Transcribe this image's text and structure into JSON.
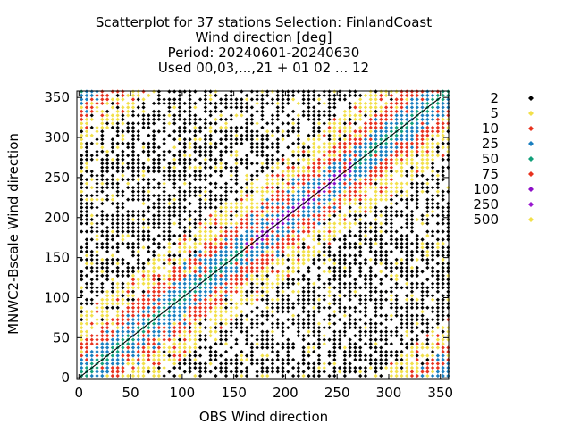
{
  "chart_data": {
    "type": "heatmap",
    "title_lines": [
      "Scatterplot for   37 stations Selection: FinlandCoast",
      "Wind direction [deg]",
      "Period: 20240601-20240630",
      "Used 00,03,...,21 + 01 02 ... 12"
    ],
    "xlabel": "OBS Wind direction",
    "ylabel": "MNWC2-Bscale Wind direction",
    "xlim": [
      -2,
      358
    ],
    "ylim": [
      -2,
      358
    ],
    "xticks": [
      0,
      50,
      100,
      150,
      200,
      250,
      300,
      350
    ],
    "yticks": [
      0,
      50,
      100,
      150,
      200,
      250,
      300,
      350
    ],
    "diagonal": true,
    "bin_size_deg": 5,
    "legend": {
      "placement": "right",
      "entries": [
        {
          "label": "2",
          "color": "#000000"
        },
        {
          "label": "5",
          "color": "#f2e04a"
        },
        {
          "label": "10",
          "color": "#e8321e"
        },
        {
          "label": "25",
          "color": "#1a7fbf"
        },
        {
          "label": "50",
          "color": "#12a07a"
        },
        {
          "label": "75",
          "color": "#e8321e"
        },
        {
          "label": "100",
          "color": "#8e10c8"
        },
        {
          "label": "250",
          "color": "#9a18d0"
        },
        {
          "label": "500",
          "color": "#f2e04a"
        }
      ]
    },
    "density_model": {
      "description_free": true,
      "band_center_offset": 0,
      "level_by_distance": [
        {
          "max_dist": 8,
          "level_index": 4
        },
        {
          "max_dist": 22,
          "level_index": 3
        },
        {
          "max_dist": 40,
          "level_index": 2
        },
        {
          "max_dist": 75,
          "level_index": 1
        },
        {
          "max_dist": 999,
          "level_index": 0
        }
      ],
      "core_range": [
        160,
        260
      ],
      "core_level_index": 6
    }
  }
}
